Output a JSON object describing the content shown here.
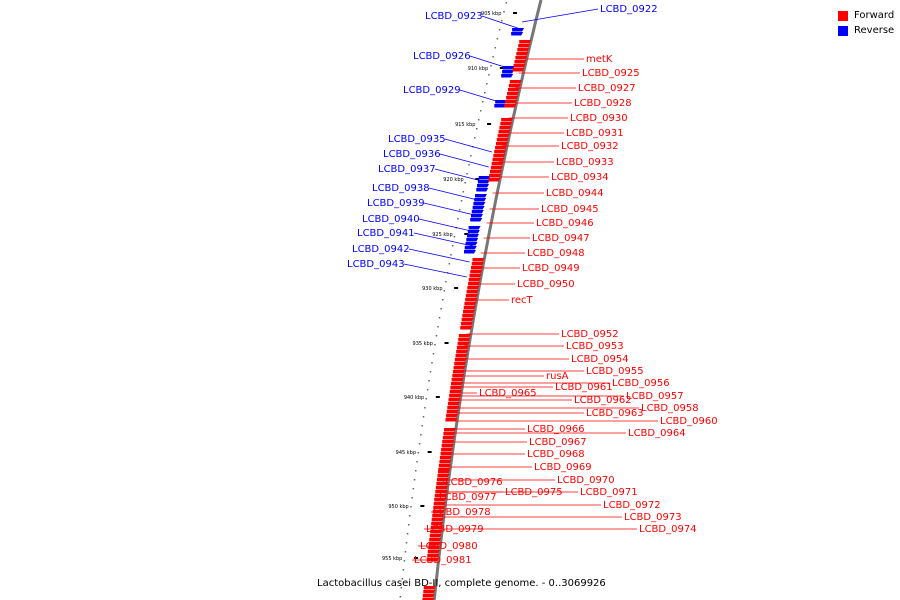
{
  "colors": {
    "forward": "#ff0000",
    "reverse": "#0000ff",
    "backbone": "#777777",
    "tick": "#000000"
  },
  "legend": [
    {
      "label": "Forward",
      "color": "#ff0000"
    },
    {
      "label": "Reverse",
      "color": "#0000ff"
    }
  ],
  "caption": "Lactobacillus casei BD-II, complete genome. - 0..3069926",
  "ruler": [
    "905 kbp",
    "910 kbp",
    "915 kbp",
    "920 kbp",
    "925 kbp",
    "930 kbp",
    "935 kbp",
    "940 kbp",
    "945 kbp",
    "950 kbp",
    "955 kbp"
  ],
  "reverse_genes": [
    "LCBD_0922",
    "LCBD_0923",
    "LCBD_0926",
    "LCBD_0929",
    "LCBD_0935",
    "LCBD_0936",
    "LCBD_0937",
    "LCBD_0938",
    "LCBD_0939",
    "LCBD_0940",
    "LCBD_0941",
    "LCBD_0942",
    "LCBD_0943"
  ],
  "forward_genes": [
    "metK",
    "LCBD_0925",
    "LCBD_0927",
    "LCBD_0928",
    "LCBD_0930",
    "LCBD_0931",
    "LCBD_0932",
    "LCBD_0933",
    "LCBD_0934",
    "LCBD_0944",
    "LCBD_0945",
    "LCBD_0946",
    "LCBD_0947",
    "LCBD_0948",
    "LCBD_0949",
    "LCBD_0950",
    "recT",
    "LCBD_0952",
    "LCBD_0953",
    "LCBD_0954",
    "LCBD_0955",
    "rusA",
    "LCBD_0956",
    "LCBD_0961",
    "LCBD_0957",
    "LCBD_0962",
    "LCBD_0965",
    "LCBD_0958",
    "LCBD_0963",
    "LCBD_0960",
    "LCBD_0964",
    "LCBD_0966",
    "LCBD_0967",
    "LCBD_0968",
    "LCBD_0969",
    "LCBD_0970",
    "LCBD_0976",
    "LCBD_0971",
    "LCBD_0975",
    "LCBD_0977",
    "LCBD_0972",
    "LCBD_0978",
    "LCBD_0973",
    "LCBD_0974",
    "LCBD_0979",
    "LCBD_0980",
    "LCBD_0981"
  ]
}
